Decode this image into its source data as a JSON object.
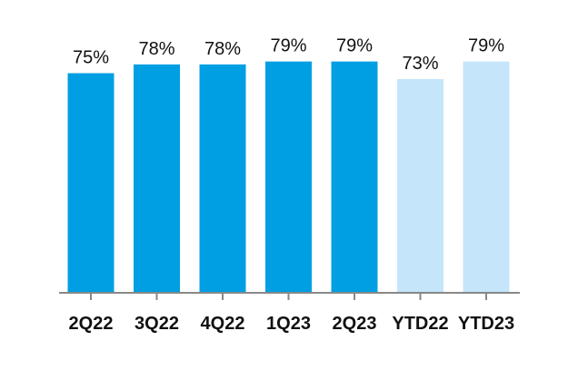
{
  "chart_data": {
    "type": "bar",
    "title": "",
    "xlabel": "",
    "ylabel": "",
    "categories": [
      "2Q22",
      "3Q22",
      "4Q22",
      "1Q23",
      "2Q23",
      "YTD22",
      "YTD23"
    ],
    "values": [
      75,
      78,
      78,
      79,
      79,
      73,
      79
    ],
    "data_labels": [
      "75%",
      "78%",
      "78%",
      "79%",
      "79%",
      "73%",
      "79%"
    ],
    "bar_colors": [
      "#009fe3",
      "#009fe3",
      "#009fe3",
      "#009fe3",
      "#009fe3",
      "#c5e5fb",
      "#c5e5fb"
    ],
    "ylim": [
      0,
      100
    ],
    "grid": false,
    "legend": "none",
    "axis_color": "#888888"
  }
}
